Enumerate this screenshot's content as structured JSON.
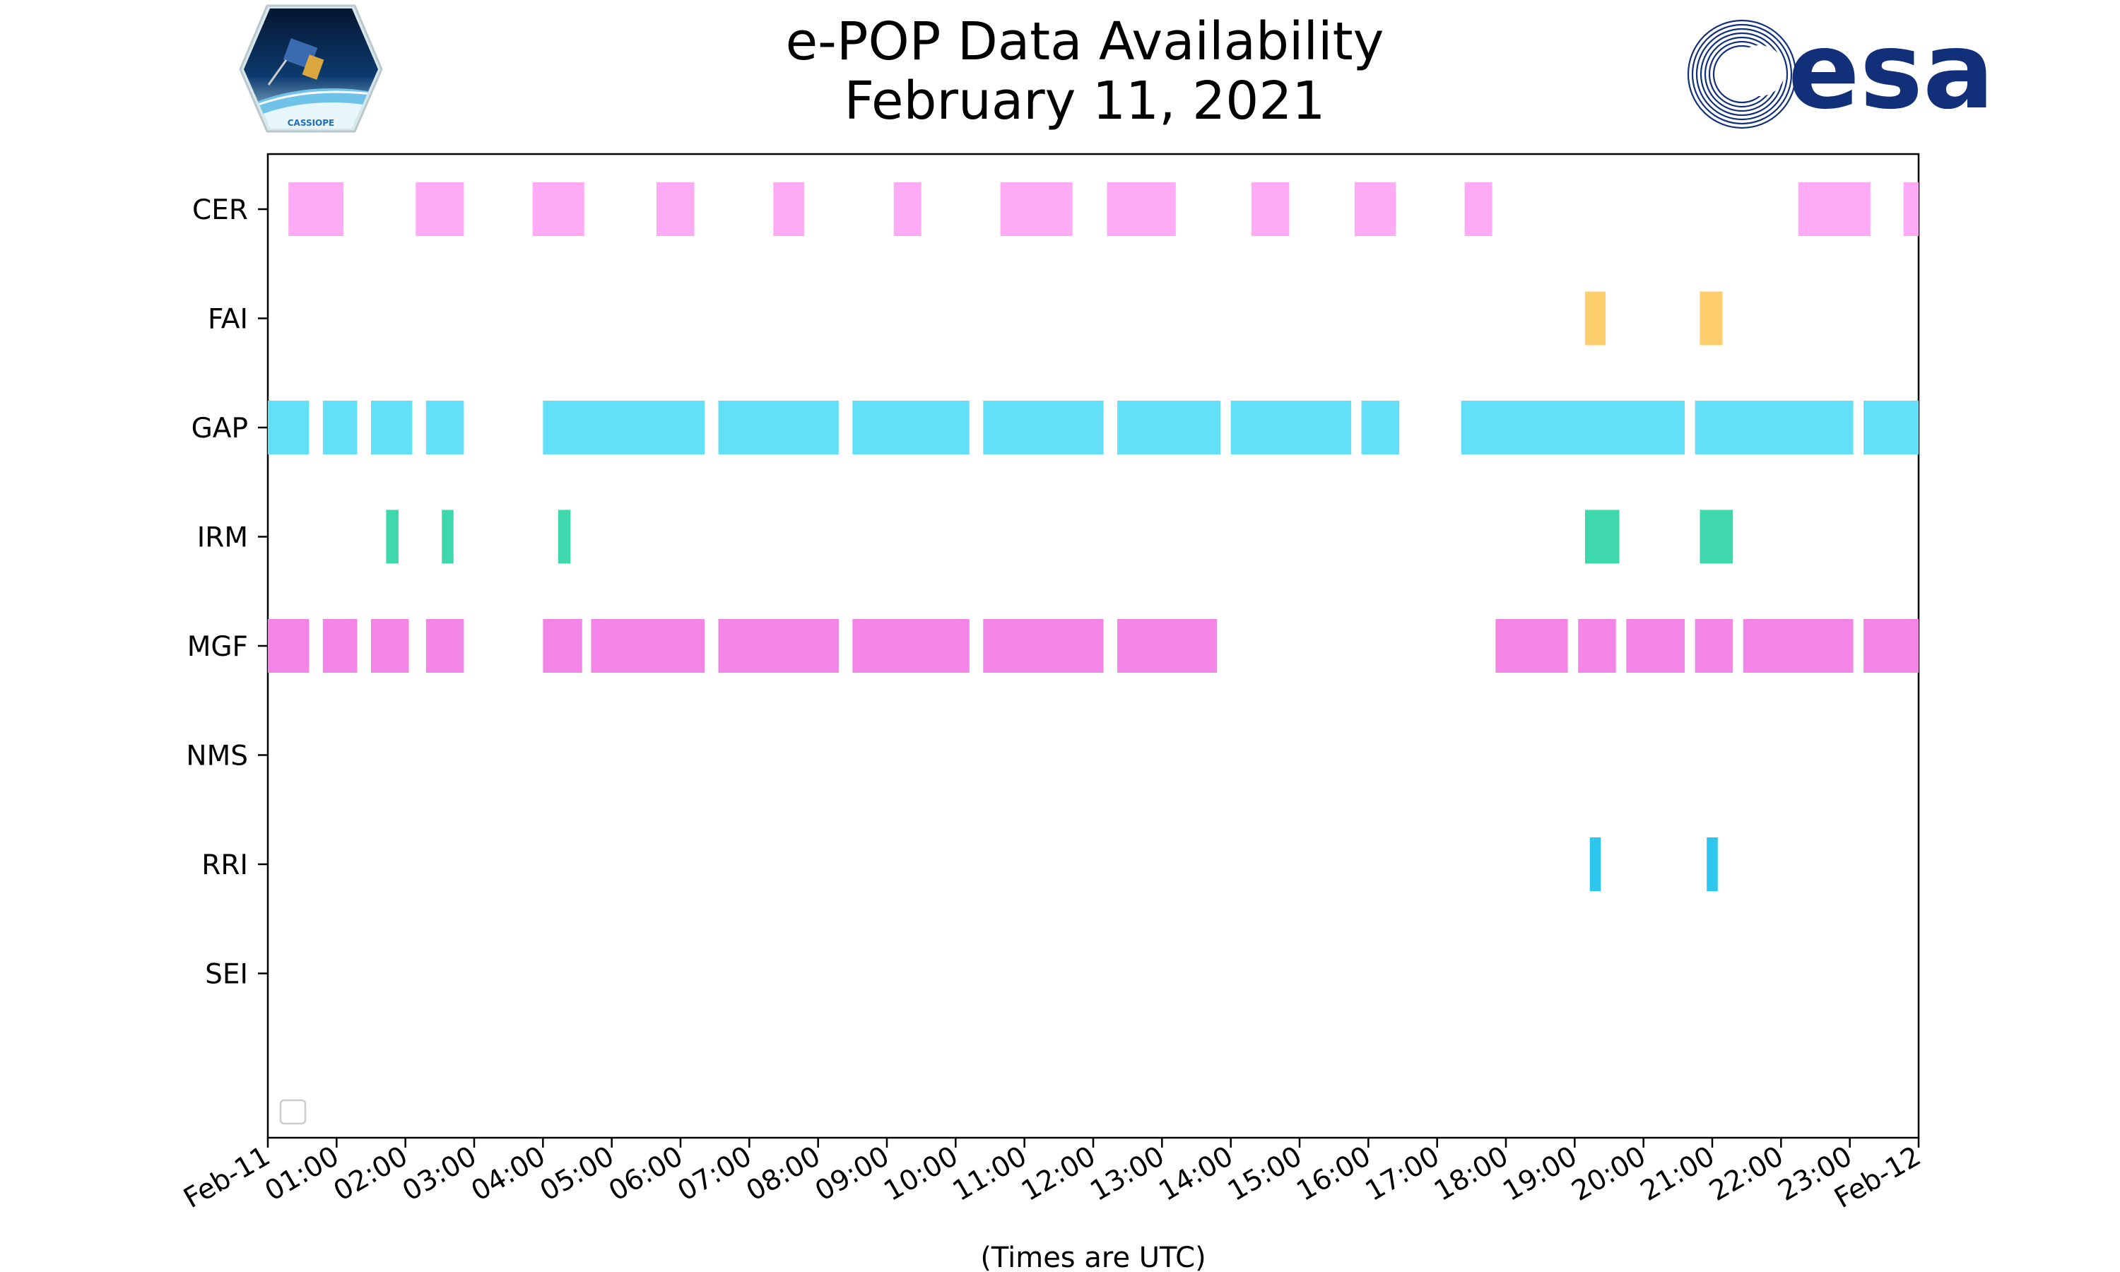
{
  "chart_data": {
    "type": "timeline",
    "title": "e-POP Data Availability",
    "subtitle": "February 11, 2021",
    "xlabel": "(Times are UTC)",
    "ylabel": "",
    "x_unit": "hours UTC",
    "xlim": [
      0,
      24
    ],
    "x_tick_labels": [
      "Feb-11",
      "01:00",
      "02:00",
      "03:00",
      "04:00",
      "05:00",
      "06:00",
      "07:00",
      "08:00",
      "09:00",
      "10:00",
      "11:00",
      "12:00",
      "13:00",
      "14:00",
      "15:00",
      "16:00",
      "17:00",
      "18:00",
      "19:00",
      "20:00",
      "21:00",
      "22:00",
      "23:00",
      "Feb-12"
    ],
    "categories": [
      "CER",
      "FAI",
      "GAP",
      "IRM",
      "MGF",
      "NMS",
      "RRI",
      "SEI"
    ],
    "legend": "lower-left",
    "legend_entries": [],
    "grid": false,
    "series": [
      {
        "name": "CER",
        "color": "#ffaaf5",
        "intervals": [
          [
            0.3,
            1.1
          ],
          [
            2.15,
            2.85
          ],
          [
            3.85,
            4.6
          ],
          [
            5.65,
            6.2
          ],
          [
            7.35,
            7.8
          ],
          [
            9.1,
            9.5
          ],
          [
            10.65,
            11.7
          ],
          [
            12.2,
            13.2
          ],
          [
            14.3,
            14.85
          ],
          [
            15.8,
            16.4
          ],
          [
            17.4,
            17.8
          ],
          [
            22.25,
            23.3
          ],
          [
            23.78,
            24.0
          ]
        ]
      },
      {
        "name": "FAI",
        "color": "#fecd6c",
        "intervals": [
          [
            19.15,
            19.45
          ],
          [
            20.82,
            21.15
          ]
        ]
      },
      {
        "name": "GAP",
        "color": "#64dff8",
        "intervals": [
          [
            0.0,
            0.6
          ],
          [
            0.8,
            1.3
          ],
          [
            1.5,
            2.1
          ],
          [
            2.3,
            2.85
          ],
          [
            4.0,
            6.35
          ],
          [
            6.55,
            8.3
          ],
          [
            8.5,
            10.2
          ],
          [
            10.4,
            12.15
          ],
          [
            12.35,
            13.85
          ],
          [
            14.0,
            15.75
          ],
          [
            15.9,
            16.45
          ],
          [
            17.35,
            20.6
          ],
          [
            20.75,
            23.05
          ],
          [
            23.2,
            24.0
          ]
        ]
      },
      {
        "name": "IRM",
        "color": "#3fd8ad",
        "intervals": [
          [
            1.72,
            1.9
          ],
          [
            2.53,
            2.7
          ],
          [
            4.22,
            4.4
          ],
          [
            19.15,
            19.65
          ],
          [
            20.82,
            21.3
          ]
        ]
      },
      {
        "name": "MGF",
        "color": "#f285e6",
        "intervals": [
          [
            0.0,
            0.6
          ],
          [
            0.8,
            1.3
          ],
          [
            1.5,
            2.05
          ],
          [
            2.3,
            2.85
          ],
          [
            4.0,
            4.57
          ],
          [
            4.7,
            6.35
          ],
          [
            6.55,
            8.3
          ],
          [
            8.5,
            10.2
          ],
          [
            10.4,
            12.15
          ],
          [
            12.35,
            13.8
          ],
          [
            17.85,
            18.9
          ],
          [
            19.05,
            19.6
          ],
          [
            19.75,
            20.6
          ],
          [
            20.75,
            21.3
          ],
          [
            21.45,
            23.05
          ],
          [
            23.2,
            24.0
          ]
        ]
      },
      {
        "name": "NMS",
        "color": "#f285e6",
        "intervals": []
      },
      {
        "name": "RRI",
        "color": "#2fc6ee",
        "intervals": [
          [
            19.22,
            19.38
          ],
          [
            20.92,
            21.08
          ]
        ]
      },
      {
        "name": "SEI",
        "color": "#f285e6",
        "intervals": []
      }
    ]
  },
  "logos": {
    "left_logo_text": "CASSIOPE",
    "right_logo_text": "esa"
  }
}
